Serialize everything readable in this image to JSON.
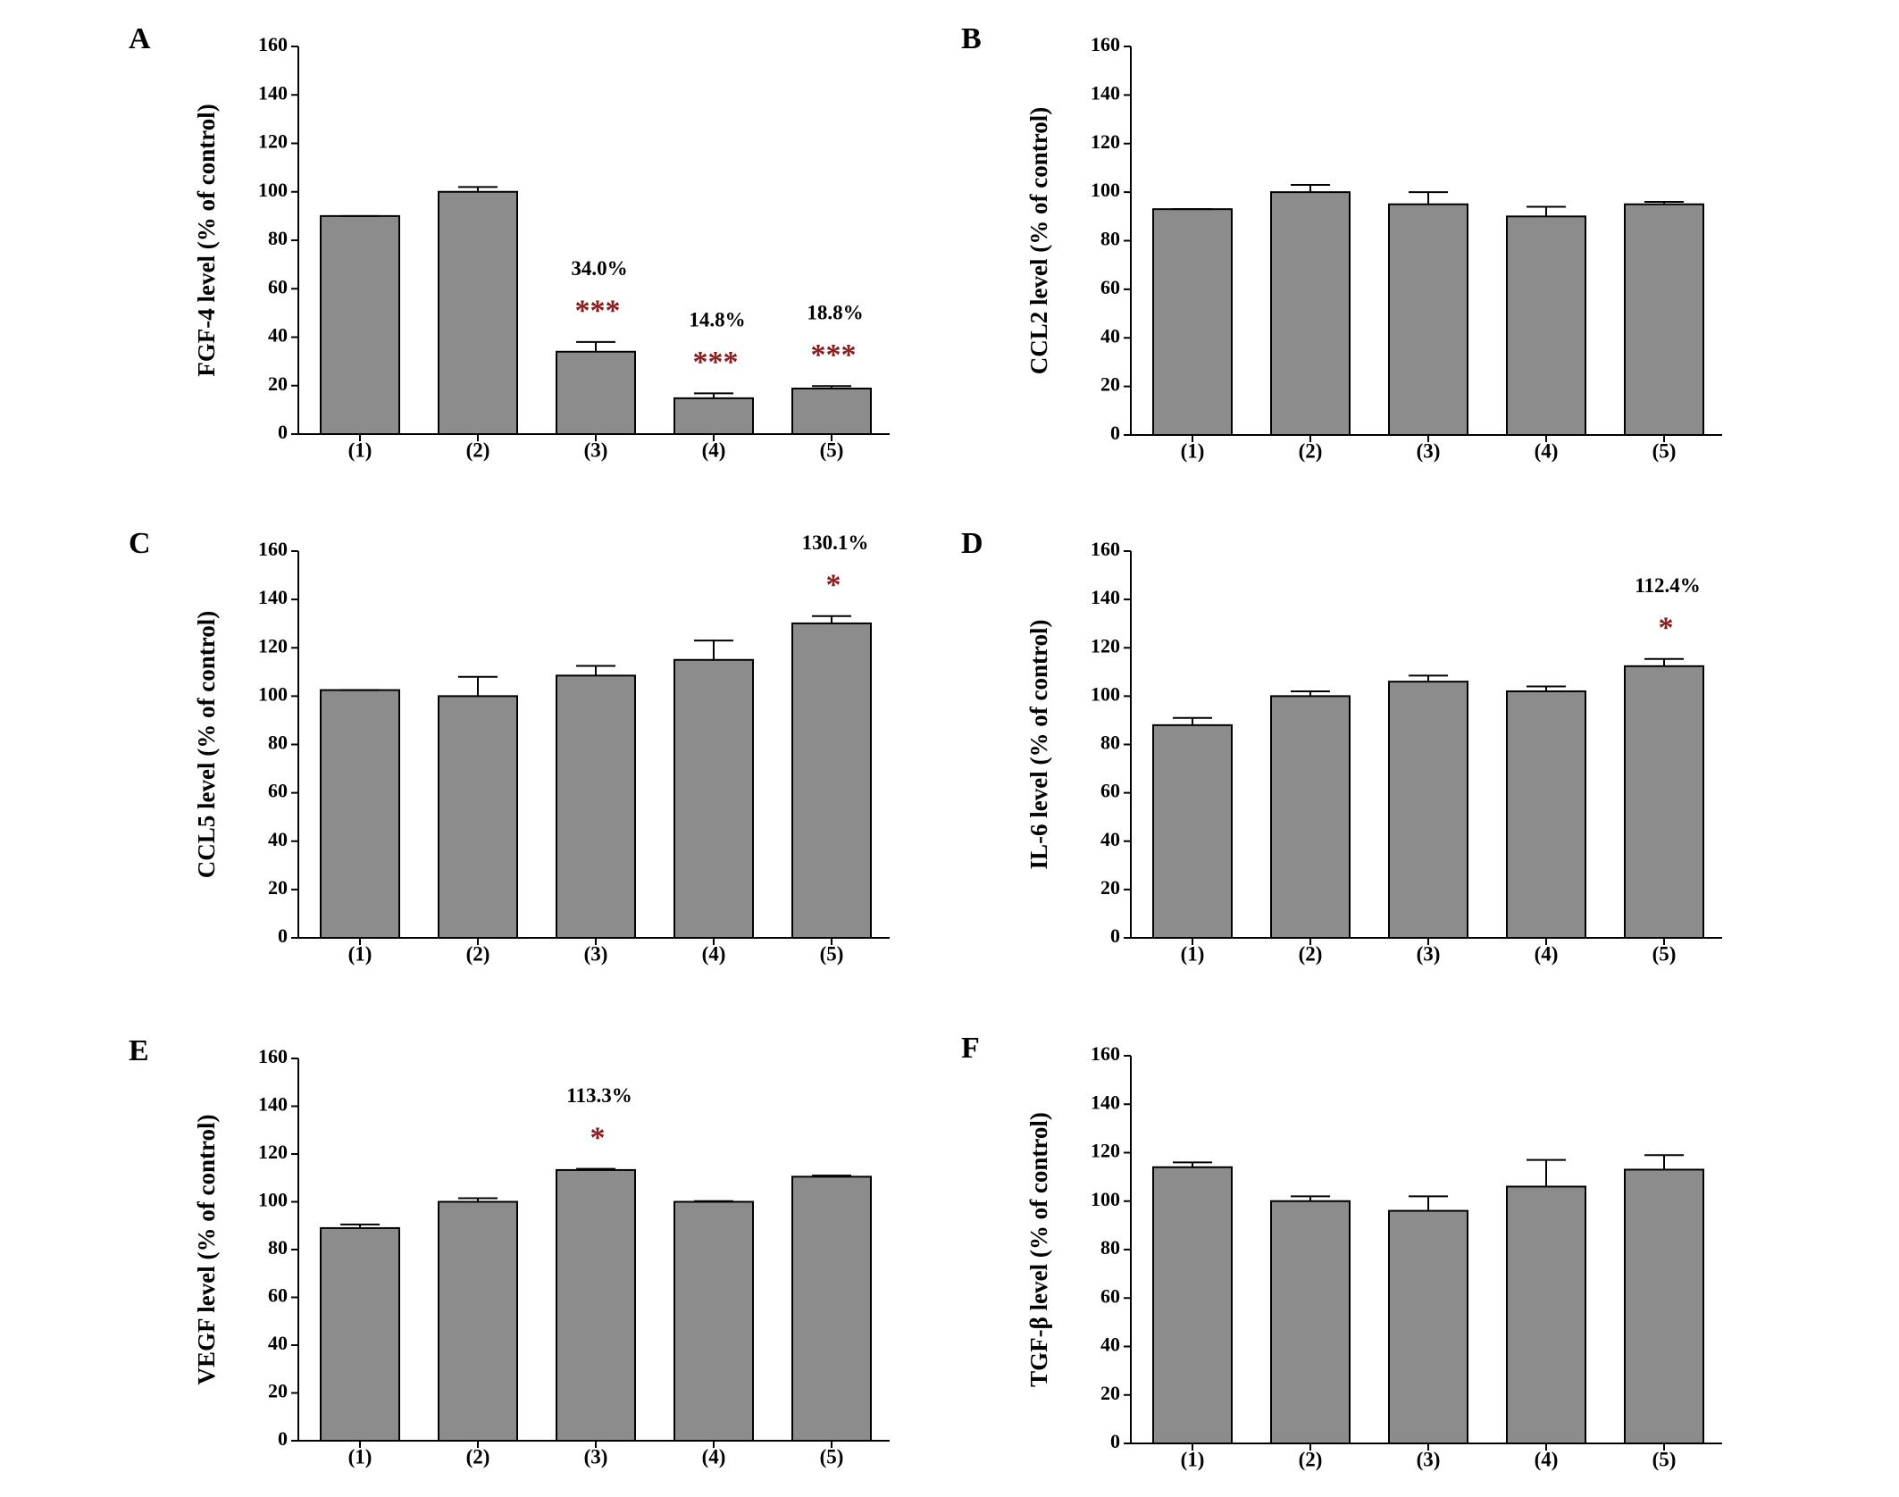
{
  "chart_data": [
    {
      "type": "bar",
      "panel": "A",
      "ylabel": "FGF-4 level (% of control)",
      "categories": [
        "(1)",
        "(2)",
        "(3)",
        "(4)",
        "(5)"
      ],
      "values": [
        90,
        100,
        34.0,
        14.8,
        18.8
      ],
      "errors": [
        0,
        2,
        4,
        2,
        1
      ],
      "value_labels": [
        null,
        null,
        "34.0%",
        "14.8%",
        "18.8%"
      ],
      "significance": [
        null,
        null,
        "***",
        "***",
        "***"
      ],
      "color": "#8c8c8c",
      "ylim": [
        0,
        160
      ],
      "yticks": [
        0,
        20,
        40,
        60,
        80,
        100,
        120,
        140,
        160
      ]
    },
    {
      "type": "bar",
      "panel": "B",
      "ylabel": "CCL2 level (% of control)",
      "categories": [
        "(1)",
        "(2)",
        "(3)",
        "(4)",
        "(5)"
      ],
      "values": [
        93,
        100,
        95,
        90,
        95
      ],
      "errors": [
        0,
        3,
        5,
        4,
        1
      ],
      "color": "#8c8c8c",
      "ylim": [
        0,
        160
      ],
      "yticks": [
        0,
        20,
        40,
        60,
        80,
        100,
        120,
        140,
        160
      ]
    },
    {
      "type": "bar",
      "panel": "C",
      "ylabel": "CCL5 level (% of control)",
      "categories": [
        "(1)",
        "(2)",
        "(3)",
        "(4)",
        "(5)"
      ],
      "values": [
        102.5,
        100,
        108.5,
        115,
        130.1
      ],
      "errors": [
        0,
        8,
        4,
        8,
        3
      ],
      "value_labels": [
        null,
        null,
        null,
        null,
        "130.1%"
      ],
      "significance": [
        null,
        null,
        null,
        null,
        "*"
      ],
      "color": "#8c8c8c",
      "ylim": [
        0,
        160
      ],
      "yticks": [
        0,
        20,
        40,
        60,
        80,
        100,
        120,
        140,
        160
      ]
    },
    {
      "type": "bar",
      "panel": "D",
      "ylabel": "IL-6 level (% of control)",
      "categories": [
        "(1)",
        "(2)",
        "(3)",
        "(4)",
        "(5)"
      ],
      "values": [
        88,
        100,
        106,
        102,
        112.4
      ],
      "errors": [
        3,
        2,
        2.5,
        2,
        3
      ],
      "value_labels": [
        null,
        null,
        null,
        null,
        "112.4%"
      ],
      "significance": [
        null,
        null,
        null,
        null,
        "*"
      ],
      "color": "#8c8c8c",
      "ylim": [
        0,
        160
      ],
      "yticks": [
        0,
        20,
        40,
        60,
        80,
        100,
        120,
        140,
        160
      ]
    },
    {
      "type": "bar",
      "panel": "E",
      "ylabel": "VEGF level (% of control)",
      "categories": [
        "(1)",
        "(2)",
        "(3)",
        "(4)",
        "(5)"
      ],
      "values": [
        89,
        100,
        113.3,
        100,
        110.5
      ],
      "errors": [
        1.5,
        1.5,
        0.5,
        0.3,
        0.5
      ],
      "value_labels": [
        null,
        null,
        "113.3%",
        null,
        null
      ],
      "significance": [
        null,
        null,
        "*",
        null,
        null
      ],
      "color": "#8c8c8c",
      "ylim": [
        0,
        160
      ],
      "yticks": [
        0,
        20,
        40,
        60,
        80,
        100,
        120,
        140,
        160
      ]
    },
    {
      "type": "bar",
      "panel": "F",
      "ylabel": "TGF-β level (% of control)",
      "categories": [
        "(1)",
        "(2)",
        "(3)",
        "(4)",
        "(5)"
      ],
      "values": [
        114,
        100,
        96,
        106,
        113
      ],
      "errors": [
        2,
        2,
        6,
        11,
        6
      ],
      "color": "#8c8c8c",
      "ylim": [
        0,
        160
      ],
      "yticks": [
        0,
        20,
        40,
        60,
        80,
        100,
        120,
        140,
        160
      ]
    }
  ]
}
